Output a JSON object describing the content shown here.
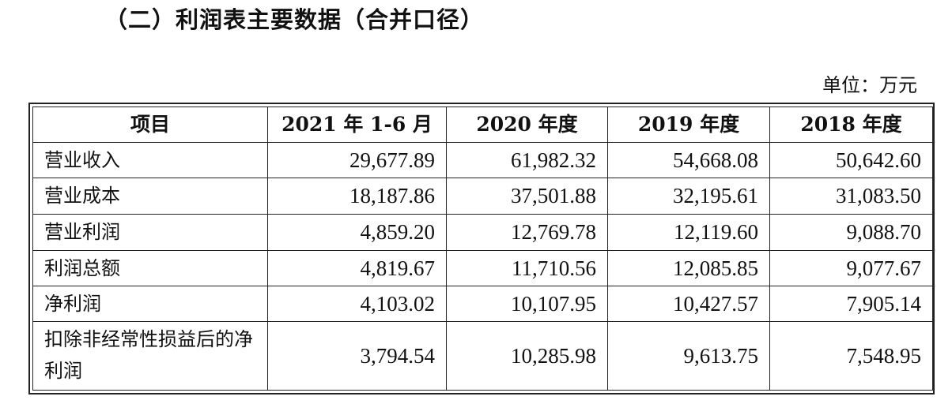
{
  "title": "（二）利润表主要数据（合并口径）",
  "unit": "单位：万元",
  "table": {
    "headers": [
      "项目",
      "2021 年 1-6 月",
      "2020 年度",
      "2019 年度",
      "2018 年度"
    ],
    "rows": [
      {
        "label": "营业收入",
        "values": [
          "29,677.89",
          "61,982.32",
          "54,668.08",
          "50,642.60"
        ]
      },
      {
        "label": "营业成本",
        "values": [
          "18,187.86",
          "37,501.88",
          "32,195.61",
          "31,083.50"
        ]
      },
      {
        "label": "营业利润",
        "values": [
          "4,859.20",
          "12,769.78",
          "12,119.60",
          "9,088.70"
        ]
      },
      {
        "label": "利润总额",
        "values": [
          "4,819.67",
          "11,710.56",
          "12,085.85",
          "9,077.67"
        ]
      },
      {
        "label": "净利润",
        "values": [
          "4,103.02",
          "10,107.95",
          "10,427.57",
          "7,905.14"
        ]
      },
      {
        "label": "扣除非经常性损益后的净利润",
        "values": [
          "3,794.54",
          "10,285.98",
          "9,613.75",
          "7,548.95"
        ]
      }
    ]
  }
}
